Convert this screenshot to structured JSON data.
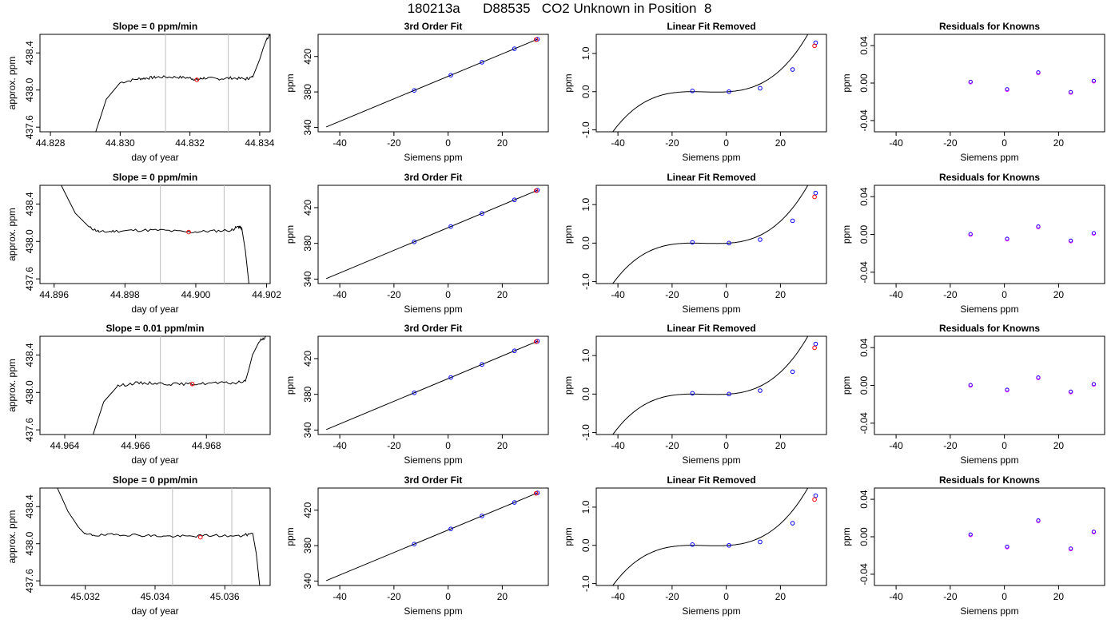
{
  "figure_title": "180213a      D88535   CO2 Unknown in Position  8",
  "colors": {
    "axis": "#000000",
    "trace": "#000000",
    "vline": "#bebebe",
    "known_point": "#0000ff",
    "unknown_point": "#ff0000",
    "residual_a": "#0000ff",
    "residual_b": "#ff00ff"
  },
  "chart_data": [
    {
      "type": "line",
      "panel": "trace",
      "title": "Slope =  0  ppm/min",
      "xlabel": "day of year",
      "ylabel": "approx. ppm",
      "xlim": [
        44.8277,
        44.8343
      ],
      "ylim": [
        437.55,
        438.6
      ],
      "xticks": [
        44.828,
        44.83,
        44.832,
        44.834
      ],
      "xticklabels": [
        "44.828",
        "44.830",
        "44.832",
        "44.834"
      ],
      "yticks": [
        437.6,
        438.0,
        438.4
      ],
      "yticklabels": [
        "437.6",
        "438.0",
        "438.4"
      ],
      "vlines": [
        44.8313,
        44.8331
      ],
      "marker": {
        "x": 44.8322,
        "y": 438.11
      },
      "trace": {
        "x": [
          44.8293,
          44.8296,
          44.83,
          44.8305,
          44.8308,
          44.8311,
          44.8316,
          44.832,
          44.8322,
          44.8324,
          44.8328,
          44.8332,
          44.8336,
          44.8338,
          44.834,
          44.8341,
          44.8342,
          44.8343
        ],
        "y": [
          437.55,
          437.9,
          438.08,
          438.12,
          438.13,
          438.14,
          438.14,
          438.13,
          438.11,
          438.13,
          438.12,
          438.13,
          438.12,
          438.14,
          438.33,
          438.45,
          438.55,
          438.6
        ]
      }
    },
    {
      "type": "line",
      "panel": "fit",
      "title": "3rd Order Fit",
      "xlabel": "Siemens ppm",
      "ylabel": "ppm",
      "xlim": [
        -48,
        37
      ],
      "ylim": [
        335,
        445
      ],
      "xticks": [
        -40,
        -20,
        0,
        20
      ],
      "xticklabels": [
        "-40",
        "-20",
        "0",
        "20"
      ],
      "yticks": [
        340,
        380,
        420
      ],
      "yticklabels": [
        "340",
        "380",
        "420"
      ],
      "line": {
        "x": [
          -45,
          33
        ],
        "y": [
          340.5,
          439.5
        ]
      },
      "knowns": {
        "x": [
          -12.5,
          1,
          12.5,
          24.5,
          33
        ],
        "y": [
          381.7,
          398.9,
          413.5,
          428.7,
          439.5
        ]
      },
      "unknown": {
        "x": 32.5,
        "y": 439
      }
    },
    {
      "type": "line",
      "panel": "linear_removed",
      "title": "Linear Fit Removed",
      "xlabel": "Siemens ppm",
      "ylabel": "ppm",
      "xlim": [
        -48,
        37
      ],
      "ylim": [
        -1.05,
        1.5
      ],
      "xticks": [
        -40,
        -20,
        0,
        20
      ],
      "xticklabels": [
        "-40",
        "-20",
        "0",
        "20"
      ],
      "yticks": [
        -1.0,
        0.0,
        1.0
      ],
      "yticklabels": [
        "-1.0",
        "0.0",
        "1.0"
      ],
      "cubic": {
        "xmin": -45,
        "xmax": 33,
        "roots": [
          -12.5,
          1
        ],
        "a": 2.83e-05
      },
      "knowns": {
        "x": [
          -12.5,
          1,
          12.5,
          24.5,
          33
        ],
        "y": [
          0.02,
          0.0,
          0.09,
          0.58,
          1.28
        ]
      },
      "unknown": {
        "x": 32.6,
        "y": 1.2
      }
    },
    {
      "type": "scatter",
      "panel": "residuals",
      "title": "Residuals for Knowns",
      "xlabel": "Siemens ppm",
      "ylabel": "ppm",
      "xlim": [
        -48,
        37
      ],
      "ylim": [
        -0.052,
        0.052
      ],
      "xticks": [
        -40,
        -20,
        0,
        20
      ],
      "xticklabels": [
        "-40",
        "-20",
        "0",
        "20"
      ],
      "yticks": [
        -0.04,
        0.0,
        0.04
      ],
      "yticklabels": [
        "-0.04",
        "0.00",
        "0.04"
      ],
      "points": {
        "x": [
          -12.5,
          1,
          12.5,
          24.5,
          33
        ],
        "y": [
          0.001,
          -0.007,
          0.011,
          -0.01,
          0.002
        ]
      }
    },
    {
      "type": "line",
      "panel": "trace",
      "title": "Slope =  0  ppm/min",
      "xlabel": "day of year",
      "ylabel": "approx. ppm",
      "xlim": [
        44.8956,
        44.9021
      ],
      "ylim": [
        437.55,
        438.6
      ],
      "xticks": [
        44.896,
        44.898,
        44.9,
        44.902
      ],
      "xticklabels": [
        "44.896",
        "44.898",
        "44.900",
        "44.902"
      ],
      "yticks": [
        437.6,
        438.0,
        438.4
      ],
      "yticklabels": [
        "437.6",
        "438.0",
        "438.4"
      ],
      "vlines": [
        44.899,
        44.9008
      ],
      "marker": {
        "x": 44.8998,
        "y": 438.1
      },
      "trace": {
        "x": [
          44.8962,
          44.8966,
          44.897,
          44.8973,
          44.8977,
          44.8983,
          44.899,
          44.8998,
          44.9004,
          44.901,
          44.9012,
          44.9013,
          44.9014,
          44.9015
        ],
        "y": [
          438.6,
          438.3,
          438.15,
          438.1,
          438.11,
          438.12,
          438.12,
          438.1,
          438.11,
          438.12,
          438.16,
          438.14,
          437.9,
          437.55
        ]
      }
    },
    {
      "type": "line",
      "panel": "fit",
      "title": "3rd Order Fit",
      "xlabel": "Siemens ppm",
      "ylabel": "ppm",
      "xlim": [
        -48,
        37
      ],
      "ylim": [
        335,
        445
      ],
      "xticks": [
        -40,
        -20,
        0,
        20
      ],
      "xticklabels": [
        "-40",
        "-20",
        "0",
        "20"
      ],
      "yticks": [
        340,
        380,
        420
      ],
      "yticklabels": [
        "340",
        "380",
        "420"
      ],
      "line": {
        "x": [
          -45,
          33
        ],
        "y": [
          340.5,
          439.5
        ]
      },
      "knowns": {
        "x": [
          -12.5,
          1,
          12.5,
          24.5,
          33
        ],
        "y": [
          381.7,
          398.9,
          413.5,
          428.7,
          439.5
        ]
      },
      "unknown": {
        "x": 32.5,
        "y": 439
      }
    },
    {
      "type": "line",
      "panel": "linear_removed",
      "title": "Linear Fit Removed",
      "xlabel": "Siemens ppm",
      "ylabel": "ppm",
      "xlim": [
        -48,
        37
      ],
      "ylim": [
        -1.05,
        1.5
      ],
      "xticks": [
        -40,
        -20,
        0,
        20
      ],
      "xticklabels": [
        "-40",
        "-20",
        "0",
        "20"
      ],
      "yticks": [
        -1.0,
        0.0,
        1.0
      ],
      "yticklabels": [
        "-1.0",
        "0.0",
        "1.0"
      ],
      "cubic": {
        "xmin": -45,
        "xmax": 33,
        "roots": [
          -12.5,
          1
        ],
        "a": 2.83e-05
      },
      "knowns": {
        "x": [
          -12.5,
          1,
          12.5,
          24.5,
          33
        ],
        "y": [
          0.02,
          0.0,
          0.09,
          0.58,
          1.3
        ]
      },
      "unknown": {
        "x": 32.6,
        "y": 1.2
      }
    },
    {
      "type": "scatter",
      "panel": "residuals",
      "title": "Residuals for Knowns",
      "xlabel": "Siemens ppm",
      "ylabel": "ppm",
      "xlim": [
        -48,
        37
      ],
      "ylim": [
        -0.052,
        0.052
      ],
      "xticks": [
        -40,
        -20,
        0,
        20
      ],
      "xticklabels": [
        "-40",
        "-20",
        "0",
        "20"
      ],
      "yticks": [
        -0.04,
        0.0,
        0.04
      ],
      "yticklabels": [
        "-0.04",
        "0.00",
        "0.04"
      ],
      "points": {
        "x": [
          -12.5,
          1,
          12.5,
          24.5,
          33
        ],
        "y": [
          0.0,
          -0.005,
          0.008,
          -0.007,
          0.001
        ]
      }
    },
    {
      "type": "line",
      "panel": "trace",
      "title": "Slope =  0.01  ppm/min",
      "xlabel": "day of year",
      "ylabel": "approx. ppm",
      "xlim": [
        44.9633,
        44.9698
      ],
      "ylim": [
        437.55,
        438.6
      ],
      "xticks": [
        44.964,
        44.966,
        44.968
      ],
      "xticklabels": [
        "44.964",
        "44.966",
        "44.968"
      ],
      "yticks": [
        437.6,
        438.0,
        438.4
      ],
      "yticklabels": [
        "437.6",
        "438.0",
        "438.4"
      ],
      "vlines": [
        44.9667,
        44.9685
      ],
      "marker": {
        "x": 44.9676,
        "y": 438.09
      },
      "trace": {
        "x": [
          44.9648,
          44.9651,
          44.9655,
          44.966,
          44.9665,
          44.967,
          44.9676,
          44.9682,
          44.9688,
          44.9691,
          44.9692,
          44.9693,
          44.9695,
          44.9697
        ],
        "y": [
          437.55,
          437.9,
          438.07,
          438.1,
          438.1,
          438.09,
          438.09,
          438.1,
          438.1,
          438.12,
          438.25,
          438.4,
          438.55,
          438.6
        ]
      }
    },
    {
      "type": "line",
      "panel": "fit",
      "title": "3rd Order Fit",
      "xlabel": "Siemens ppm",
      "ylabel": "ppm",
      "xlim": [
        -48,
        37
      ],
      "ylim": [
        335,
        445
      ],
      "xticks": [
        -40,
        -20,
        0,
        20
      ],
      "xticklabels": [
        "-40",
        "-20",
        "0",
        "20"
      ],
      "yticks": [
        340,
        380,
        420
      ],
      "yticklabels": [
        "340",
        "380",
        "420"
      ],
      "line": {
        "x": [
          -45,
          33
        ],
        "y": [
          340.5,
          439.5
        ]
      },
      "knowns": {
        "x": [
          -12.5,
          1,
          12.5,
          24.5,
          33
        ],
        "y": [
          381.7,
          398.9,
          413.5,
          428.7,
          439.5
        ]
      },
      "unknown": {
        "x": 32.5,
        "y": 439
      }
    },
    {
      "type": "line",
      "panel": "linear_removed",
      "title": "Linear Fit Removed",
      "xlabel": "Siemens ppm",
      "ylabel": "ppm",
      "xlim": [
        -48,
        37
      ],
      "ylim": [
        -1.05,
        1.5
      ],
      "xticks": [
        -40,
        -20,
        0,
        20
      ],
      "xticklabels": [
        "-40",
        "-20",
        "0",
        "20"
      ],
      "yticks": [
        -1.0,
        0.0,
        1.0
      ],
      "yticklabels": [
        "-1.0",
        "0.0",
        "1.0"
      ],
      "cubic": {
        "xmin": -45,
        "xmax": 33,
        "roots": [
          -12.5,
          1
        ],
        "a": 2.83e-05
      },
      "knowns": {
        "x": [
          -12.5,
          1,
          12.5,
          24.5,
          33
        ],
        "y": [
          0.02,
          0.0,
          0.09,
          0.58,
          1.3
        ]
      },
      "unknown": {
        "x": 32.6,
        "y": 1.2
      }
    },
    {
      "type": "scatter",
      "panel": "residuals",
      "title": "Residuals for Knowns",
      "xlabel": "Siemens ppm",
      "ylabel": "ppm",
      "xlim": [
        -48,
        37
      ],
      "ylim": [
        -0.052,
        0.052
      ],
      "xticks": [
        -40,
        -20,
        0,
        20
      ],
      "xticklabels": [
        "-40",
        "-20",
        "0",
        "20"
      ],
      "yticks": [
        -0.04,
        0.0,
        0.04
      ],
      "yticklabels": [
        "-0.04",
        "0.00",
        "0.04"
      ],
      "points": {
        "x": [
          -12.5,
          1,
          12.5,
          24.5,
          33
        ],
        "y": [
          0.0,
          -0.005,
          0.008,
          -0.007,
          0.001
        ]
      }
    },
    {
      "type": "line",
      "panel": "trace",
      "title": "Slope =  0  ppm/min",
      "xlabel": "day of year",
      "ylabel": "approx. ppm",
      "xlim": [
        45.0307,
        45.0373
      ],
      "ylim": [
        437.55,
        438.6
      ],
      "xticks": [
        45.032,
        45.034,
        45.036
      ],
      "xticklabels": [
        "45.032",
        "45.034",
        "45.036"
      ],
      "yticks": [
        437.6,
        438.0,
        438.4
      ],
      "yticklabels": [
        "437.6",
        "438.0",
        "438.4"
      ],
      "vlines": [
        45.0345,
        45.0362
      ],
      "marker": {
        "x": 45.0353,
        "y": 438.07
      },
      "trace": {
        "x": [
          45.0312,
          45.0315,
          45.0318,
          45.032,
          45.0324,
          45.033,
          45.0337,
          45.0343,
          45.035,
          45.0356,
          45.0364,
          45.0368,
          45.0369,
          45.037
        ],
        "y": [
          438.6,
          438.35,
          438.18,
          438.1,
          438.09,
          438.1,
          438.09,
          438.08,
          438.08,
          438.09,
          438.08,
          438.11,
          437.9,
          437.55
        ]
      }
    },
    {
      "type": "line",
      "panel": "fit",
      "title": "3rd Order Fit",
      "xlabel": "Siemens ppm",
      "ylabel": "ppm",
      "xlim": [
        -48,
        37
      ],
      "ylim": [
        335,
        445
      ],
      "xticks": [
        -40,
        -20,
        0,
        20
      ],
      "xticklabels": [
        "-40",
        "-20",
        "0",
        "20"
      ],
      "yticks": [
        340,
        380,
        420
      ],
      "yticklabels": [
        "340",
        "380",
        "420"
      ],
      "line": {
        "x": [
          -45,
          33
        ],
        "y": [
          340.5,
          439.5
        ]
      },
      "knowns": {
        "x": [
          -12.5,
          1,
          12.5,
          24.5,
          33
        ],
        "y": [
          381.7,
          398.9,
          413.5,
          428.7,
          439.5
        ]
      },
      "unknown": {
        "x": 32.5,
        "y": 439
      }
    },
    {
      "type": "line",
      "panel": "linear_removed",
      "title": "Linear Fit Removed",
      "xlabel": "Siemens ppm",
      "ylabel": "ppm",
      "xlim": [
        -48,
        37
      ],
      "ylim": [
        -1.05,
        1.5
      ],
      "xticks": [
        -40,
        -20,
        0,
        20
      ],
      "xticklabels": [
        "-40",
        "-20",
        "0",
        "20"
      ],
      "yticks": [
        -1.0,
        0.0,
        1.0
      ],
      "yticklabels": [
        "-1.0",
        "0.0",
        "1.0"
      ],
      "cubic": {
        "xmin": -45,
        "xmax": 33,
        "roots": [
          -12.5,
          1
        ],
        "a": 2.83e-05
      },
      "knowns": {
        "x": [
          -12.5,
          1,
          12.5,
          24.5,
          33
        ],
        "y": [
          0.02,
          0.0,
          0.09,
          0.58,
          1.3
        ]
      },
      "unknown": {
        "x": 32.6,
        "y": 1.2
      }
    },
    {
      "type": "scatter",
      "panel": "residuals",
      "title": "Residuals for Knowns",
      "xlabel": "Siemens ppm",
      "ylabel": "ppm",
      "xlim": [
        -48,
        37
      ],
      "ylim": [
        -0.052,
        0.052
      ],
      "xticks": [
        -40,
        -20,
        0,
        20
      ],
      "xticklabels": [
        "-40",
        "-20",
        "0",
        "20"
      ],
      "yticks": [
        -0.04,
        0.0,
        0.04
      ],
      "yticklabels": [
        "-0.04",
        "0.00",
        "0.04"
      ],
      "points": {
        "x": [
          -12.5,
          1,
          12.5,
          24.5,
          33
        ],
        "y": [
          0.002,
          -0.011,
          0.017,
          -0.013,
          0.005
        ]
      }
    }
  ]
}
